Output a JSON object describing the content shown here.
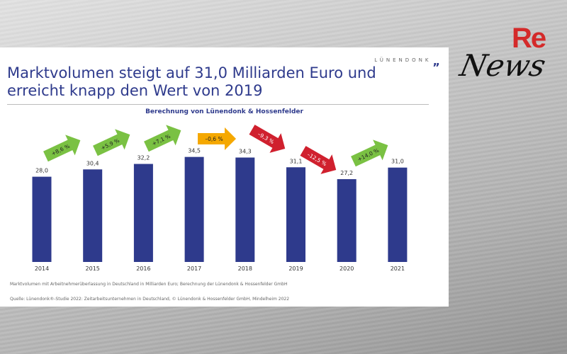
{
  "brand": {
    "name": "LÜNENDONK",
    "mark": "„"
  },
  "logo": {
    "re": "Re",
    "news": "News"
  },
  "header": {
    "title": "Marktvolumen steigt auf 31,0 Milliarden Euro und erreicht knapp den Wert von 2019"
  },
  "chart_data": {
    "type": "bar",
    "title": "Berechnung von Lünendonk & Hossenfelder",
    "categories": [
      "2014",
      "2015",
      "2016",
      "2017",
      "2018",
      "2019",
      "2020",
      "2021"
    ],
    "values": [
      28.0,
      30.4,
      32.2,
      34.5,
      34.3,
      31.1,
      27.2,
      31.0
    ],
    "value_labels": [
      "28,0",
      "30,4",
      "32,2",
      "34,5",
      "34,3",
      "31,1",
      "27,2",
      "31,0"
    ],
    "changes": [
      {
        "label": "+8,6 %",
        "trend": "up"
      },
      {
        "label": "+5,9 %",
        "trend": "up"
      },
      {
        "label": "+7,1 %",
        "trend": "up"
      },
      {
        "label": "–0,6 %",
        "trend": "flat"
      },
      {
        "label": "–9,3 %",
        "trend": "down"
      },
      {
        "label": "–12,5 %",
        "trend": "down"
      },
      {
        "label": "+14,0 %",
        "trend": "up"
      }
    ],
    "ylim": [
      0,
      40
    ],
    "bar_color": "#2e3a8c",
    "colors": {
      "up": "#7ac143",
      "flat": "#f5a800",
      "down": "#d0202e"
    }
  },
  "footer": {
    "note": "Marktvolumen mit Arbeitnehmerüberlassung in Deutschland in Milliarden Euro; Berechnung der Lünendonk & Hossenfelder GmbH",
    "source": "Quelle: Lünendonk®-Studie 2022: Zeitarbeitsunternehmen in Deutschland, © Lünendonk & Hossenfelder GmbH, Mindelheim 2022"
  }
}
